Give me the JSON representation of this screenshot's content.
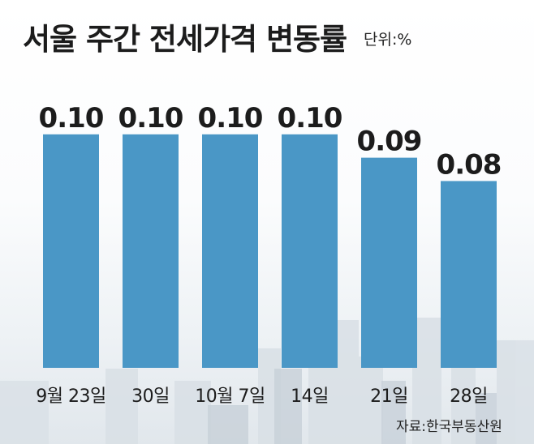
{
  "header": {
    "title": "서울 주간 전세가격 변동률",
    "unit": "단위:%"
  },
  "footer": {
    "source": "자료:한국부동산원"
  },
  "colors": {
    "bar": "#4a97c6",
    "text": "#1c1c1c"
  },
  "chart_data": {
    "type": "bar",
    "title": "서울 주간 전세가격 변동률",
    "categories": [
      "9월 23일",
      "30일",
      "10월 7일",
      "14일",
      "21일",
      "28일"
    ],
    "values": [
      0.1,
      0.1,
      0.1,
      0.1,
      0.09,
      0.08
    ],
    "data_labels": [
      "0.10",
      "0.10",
      "0.10",
      "0.10",
      "0.09",
      "0.08"
    ],
    "ylim": [
      0,
      0.127
    ],
    "grid": false,
    "legend": "none"
  }
}
